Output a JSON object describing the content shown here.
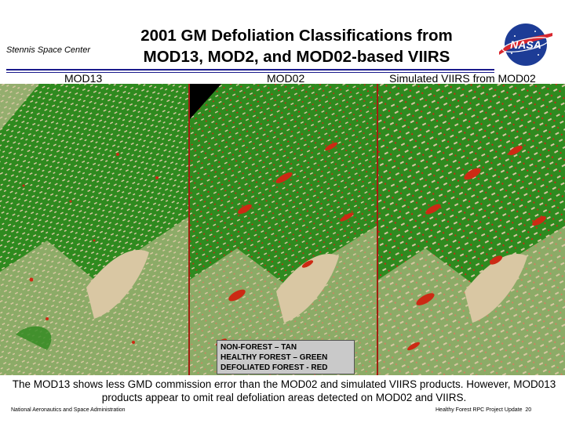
{
  "header": {
    "org": "Stennis Space Center",
    "title_line1": "2001 GM Defoliation Classifications from",
    "title_line2": "MOD13, MOD2, and MOD02-based VIIRS",
    "logo_text": "NASA"
  },
  "panels": {
    "label_1": "MOD13",
    "label_2": "MOD02",
    "label_3": "Simulated VIIRS from MOD02"
  },
  "legend": {
    "line1": "NON-FOREST – TAN",
    "line2": "HEALTHY FOREST – GREEN",
    "line3": "DEFOLIATED FOREST - RED"
  },
  "caption": "The MOD13 shows less GMD commission error than the MOD02 and simulated VIIRS products. However, MOD013 products appear to omit real defoliation areas detected on MOD02 and VIIRS.",
  "footer": {
    "left": "National Aeronautics and Space Administration",
    "right": "Healthy Forest RPC Project Update",
    "page": "20"
  },
  "colors": {
    "forest": "#2f8a1f",
    "non_forest": "#d9c7a3",
    "defoliated": "#cc2a14",
    "rule": "#1a1a8c"
  }
}
